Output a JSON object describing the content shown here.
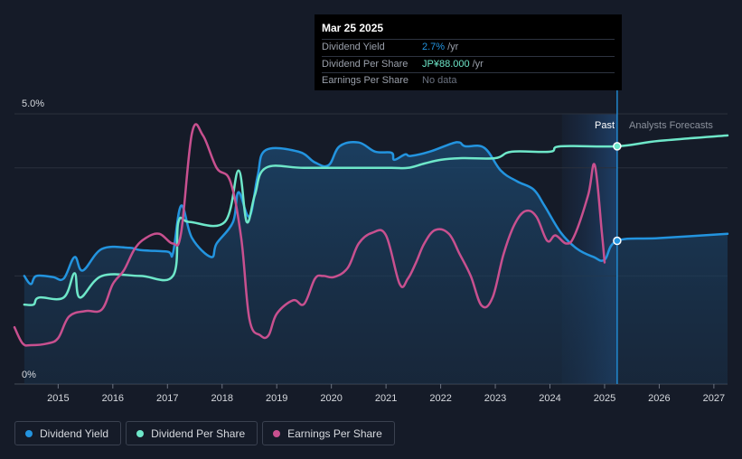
{
  "tooltip": {
    "date": "Mar 25 2025",
    "rows": [
      {
        "label": "Dividend Yield",
        "value": "2.7%",
        "unit": "/yr"
      },
      {
        "label": "Dividend Per Share",
        "value": "JP¥88.000",
        "unit": "/yr"
      },
      {
        "label": "Earnings Per Share",
        "value": "No data"
      }
    ]
  },
  "labels": {
    "past": "Past",
    "forecast": "Analysts Forecasts"
  },
  "legend": [
    {
      "label": "Dividend Yield",
      "color": "#2394df"
    },
    {
      "label": "Dividend Per Share",
      "color": "#6ee7c9"
    },
    {
      "label": "Earnings Per Share",
      "color": "#c8508f"
    }
  ],
  "chart_data": {
    "type": "line",
    "title": "",
    "xlabel": "",
    "ylabel": "",
    "y_tick_labels": [
      "0%",
      "5.0%"
    ],
    "ylim": [
      0,
      5
    ],
    "xlim": [
      2014.2,
      2027.25
    ],
    "x_ticks": [
      2015,
      2016,
      2017,
      2018,
      2019,
      2020,
      2021,
      2022,
      2023,
      2024,
      2025,
      2026,
      2027
    ],
    "x_tick_labels": [
      "2015",
      "2016",
      "2017",
      "2018",
      "2019",
      "2020",
      "2021",
      "2022",
      "2023",
      "2024",
      "2025",
      "2026",
      "2027"
    ],
    "forecast_region": [
      2024.22,
      2025.23
    ],
    "marker_date": 2025.23,
    "series": [
      {
        "name": "Dividend Yield",
        "color": "#2394df",
        "area": true,
        "forecast_from": 2025.23,
        "points": [
          [
            2014.38,
            2.0
          ],
          [
            2014.5,
            1.85
          ],
          [
            2014.6,
            2.0
          ],
          [
            2014.9,
            1.98
          ],
          [
            2015.1,
            1.95
          ],
          [
            2015.3,
            2.35
          ],
          [
            2015.45,
            2.1
          ],
          [
            2015.8,
            2.5
          ],
          [
            2016.3,
            2.52
          ],
          [
            2016.5,
            2.48
          ],
          [
            2017.0,
            2.45
          ],
          [
            2017.1,
            2.42
          ],
          [
            2017.25,
            3.3
          ],
          [
            2017.45,
            2.7
          ],
          [
            2017.8,
            2.35
          ],
          [
            2017.9,
            2.6
          ],
          [
            2018.2,
            3.0
          ],
          [
            2018.3,
            3.55
          ],
          [
            2018.5,
            3.1
          ],
          [
            2018.65,
            3.85
          ],
          [
            2018.8,
            4.33
          ],
          [
            2019.4,
            4.3
          ],
          [
            2019.7,
            4.1
          ],
          [
            2019.95,
            4.05
          ],
          [
            2020.15,
            4.4
          ],
          [
            2020.5,
            4.47
          ],
          [
            2020.8,
            4.3
          ],
          [
            2021.1,
            4.28
          ],
          [
            2021.15,
            4.15
          ],
          [
            2021.35,
            4.25
          ],
          [
            2021.45,
            4.22
          ],
          [
            2021.8,
            4.3
          ],
          [
            2022.2,
            4.45
          ],
          [
            2022.35,
            4.47
          ],
          [
            2022.45,
            4.4
          ],
          [
            2022.8,
            4.37
          ],
          [
            2023.1,
            3.95
          ],
          [
            2023.4,
            3.75
          ],
          [
            2023.7,
            3.6
          ],
          [
            2023.9,
            3.3
          ],
          [
            2024.2,
            2.8
          ],
          [
            2024.5,
            2.5
          ],
          [
            2024.8,
            2.35
          ],
          [
            2025.0,
            2.3
          ],
          [
            2025.23,
            2.65
          ],
          [
            2026.0,
            2.7
          ],
          [
            2027.25,
            2.78
          ]
        ]
      },
      {
        "name": "Dividend Per Share",
        "color": "#6ee7c9",
        "area": false,
        "forecast_from": 2025.23,
        "points": [
          [
            2014.38,
            1.47
          ],
          [
            2014.55,
            1.47
          ],
          [
            2014.65,
            1.6
          ],
          [
            2015.1,
            1.6
          ],
          [
            2015.3,
            2.05
          ],
          [
            2015.4,
            1.6
          ],
          [
            2015.8,
            2.0
          ],
          [
            2016.5,
            2.0
          ],
          [
            2017.1,
            2.0
          ],
          [
            2017.2,
            3.0
          ],
          [
            2017.4,
            3.0
          ],
          [
            2018.05,
            3.0
          ],
          [
            2018.3,
            3.95
          ],
          [
            2018.45,
            3.0
          ],
          [
            2018.6,
            3.5
          ],
          [
            2018.8,
            4.0
          ],
          [
            2019.5,
            4.0
          ],
          [
            2020.5,
            4.0
          ],
          [
            2021.1,
            4.0
          ],
          [
            2021.4,
            4.0
          ],
          [
            2021.7,
            4.08
          ],
          [
            2022.0,
            4.15
          ],
          [
            2022.4,
            4.18
          ],
          [
            2023.0,
            4.18
          ],
          [
            2023.3,
            4.3
          ],
          [
            2024.0,
            4.3
          ],
          [
            2024.2,
            4.4
          ],
          [
            2025.23,
            4.4
          ],
          [
            2026.0,
            4.5
          ],
          [
            2027.25,
            4.6
          ]
        ]
      },
      {
        "name": "Earnings Per Share",
        "color": "#c8508f",
        "area": false,
        "points": [
          [
            2014.2,
            1.05
          ],
          [
            2014.35,
            0.75
          ],
          [
            2014.5,
            0.72
          ],
          [
            2014.8,
            0.75
          ],
          [
            2015.0,
            0.85
          ],
          [
            2015.2,
            1.25
          ],
          [
            2015.5,
            1.35
          ],
          [
            2015.8,
            1.38
          ],
          [
            2016.0,
            1.85
          ],
          [
            2016.2,
            2.1
          ],
          [
            2016.4,
            2.5
          ],
          [
            2016.6,
            2.7
          ],
          [
            2016.85,
            2.78
          ],
          [
            2017.1,
            2.6
          ],
          [
            2017.25,
            2.8
          ],
          [
            2017.45,
            4.65
          ],
          [
            2017.65,
            4.6
          ],
          [
            2017.9,
            4.0
          ],
          [
            2018.15,
            3.75
          ],
          [
            2018.35,
            2.7
          ],
          [
            2018.5,
            1.2
          ],
          [
            2018.7,
            0.9
          ],
          [
            2018.85,
            0.9
          ],
          [
            2019.0,
            1.3
          ],
          [
            2019.3,
            1.55
          ],
          [
            2019.5,
            1.48
          ],
          [
            2019.7,
            1.95
          ],
          [
            2019.85,
            2.0
          ],
          [
            2020.05,
            1.98
          ],
          [
            2020.3,
            2.15
          ],
          [
            2020.5,
            2.6
          ],
          [
            2020.75,
            2.8
          ],
          [
            2021.0,
            2.75
          ],
          [
            2021.25,
            1.85
          ],
          [
            2021.4,
            1.95
          ],
          [
            2021.55,
            2.25
          ],
          [
            2021.7,
            2.6
          ],
          [
            2021.9,
            2.85
          ],
          [
            2022.15,
            2.78
          ],
          [
            2022.35,
            2.4
          ],
          [
            2022.55,
            2.0
          ],
          [
            2022.75,
            1.45
          ],
          [
            2022.95,
            1.6
          ],
          [
            2023.15,
            2.4
          ],
          [
            2023.35,
            2.95
          ],
          [
            2023.55,
            3.2
          ],
          [
            2023.75,
            3.1
          ],
          [
            2023.95,
            2.65
          ],
          [
            2024.1,
            2.75
          ],
          [
            2024.3,
            2.6
          ],
          [
            2024.45,
            2.75
          ],
          [
            2024.7,
            3.5
          ],
          [
            2024.82,
            4.05
          ],
          [
            2024.95,
            2.8
          ],
          [
            2025.0,
            2.25
          ]
        ]
      }
    ]
  }
}
